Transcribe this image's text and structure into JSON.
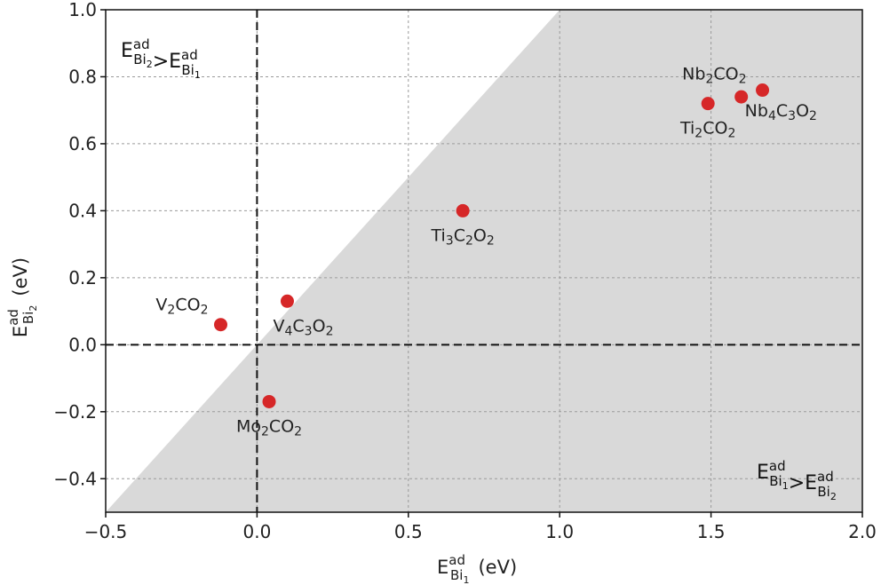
{
  "chart_data": {
    "type": "scatter",
    "xlim": [
      -0.5,
      2.0
    ],
    "ylim": [
      -0.5,
      1.0
    ],
    "xticks": [
      "−0.5",
      "0.0",
      "0.5",
      "1.0",
      "1.5",
      "2.0"
    ],
    "xtick_values": [
      -0.5,
      0.0,
      0.5,
      1.0,
      1.5,
      2.0
    ],
    "yticks": [
      "−0.4",
      "−0.2",
      "0.0",
      "0.2",
      "0.4",
      "0.6",
      "0.8",
      "1.0"
    ],
    "ytick_values": [
      -0.4,
      -0.2,
      0.0,
      0.2,
      0.4,
      0.6,
      0.8,
      1.0
    ],
    "grid": true,
    "marker_color": "#d62728",
    "shaded_region_color": "#d9d9d9",
    "shaded_region": "below y = x",
    "reference_lines": {
      "x": 0.0,
      "y": 0.0,
      "style": "dashed"
    },
    "xlabel": {
      "main": "E",
      "sup": "ad",
      "sub_base": "Bi",
      "sub_index": "1",
      "unit": "(eV)"
    },
    "ylabel": {
      "main": "E",
      "sup": "ad",
      "sub_base": "Bi",
      "sub_index": "2",
      "unit": "(eV)"
    },
    "region_labels": {
      "upper_left": {
        "left": {
          "main": "E",
          "sup": "ad",
          "sub_base": "Bi",
          "sub_index": "2"
        },
        "op": ">",
        "right": {
          "main": "E",
          "sup": "ad",
          "sub_base": "Bi",
          "sub_index": "1"
        }
      },
      "lower_right": {
        "left": {
          "main": "E",
          "sup": "ad",
          "sub_base": "Bi",
          "sub_index": "1"
        },
        "op": ">",
        "right": {
          "main": "E",
          "sup": "ad",
          "sub_base": "Bi",
          "sub_index": "2"
        }
      }
    },
    "points": [
      {
        "x": -0.12,
        "y": 0.06,
        "label": [
          [
            "V",
            ""
          ],
          [
            "2",
            "sub"
          ],
          [
            "CO",
            ""
          ],
          [
            "2",
            "sub"
          ]
        ],
        "label_pos": "upper-left"
      },
      {
        "x": 0.1,
        "y": 0.13,
        "label": [
          [
            "V",
            ""
          ],
          [
            "4",
            "sub"
          ],
          [
            "C",
            ""
          ],
          [
            "3",
            "sub"
          ],
          [
            "O",
            ""
          ],
          [
            "2",
            "sub"
          ]
        ],
        "label_pos": "below-right"
      },
      {
        "x": 0.04,
        "y": -0.17,
        "label": [
          [
            "Mo",
            ""
          ],
          [
            "2",
            "sub"
          ],
          [
            "CO",
            ""
          ],
          [
            "2",
            "sub"
          ]
        ],
        "label_pos": "below"
      },
      {
        "x": 0.68,
        "y": 0.4,
        "label": [
          [
            "Ti",
            ""
          ],
          [
            "3",
            "sub"
          ],
          [
            "C",
            ""
          ],
          [
            "2",
            "sub"
          ],
          [
            "O",
            ""
          ],
          [
            "2",
            "sub"
          ]
        ],
        "label_pos": "below"
      },
      {
        "x": 1.49,
        "y": 0.72,
        "label": [
          [
            "Ti",
            ""
          ],
          [
            "2",
            "sub"
          ],
          [
            "CO",
            ""
          ],
          [
            "2",
            "sub"
          ]
        ],
        "label_pos": "below"
      },
      {
        "x": 1.6,
        "y": 0.74,
        "label": [
          [
            "Nb",
            ""
          ],
          [
            "4",
            "sub"
          ],
          [
            "C",
            ""
          ],
          [
            "3",
            "sub"
          ],
          [
            "O",
            ""
          ],
          [
            "2",
            "sub"
          ]
        ],
        "label_pos": "right"
      },
      {
        "x": 1.67,
        "y": 0.76,
        "label": [
          [
            "Nb",
            ""
          ],
          [
            "2",
            "sub"
          ],
          [
            "CO",
            ""
          ],
          [
            "2",
            "sub"
          ]
        ],
        "label_pos": "above-left"
      }
    ]
  }
}
